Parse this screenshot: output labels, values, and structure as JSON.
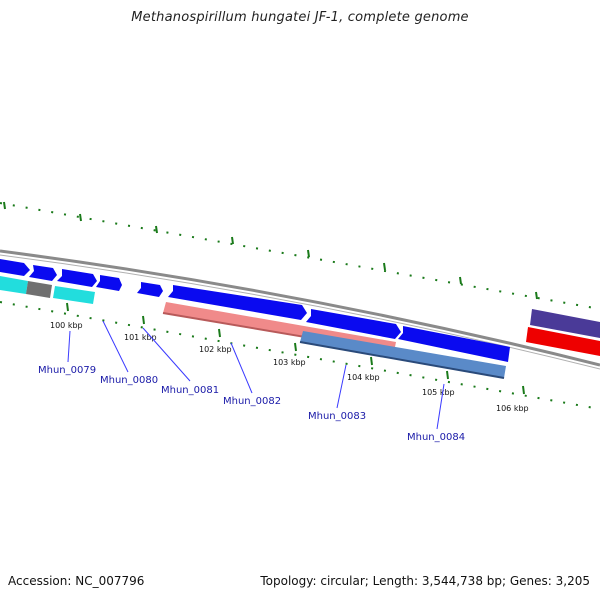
{
  "title": "Methanospirillum hungatei JF-1, complete genome",
  "footer": {
    "accession": "Accession: NC_007796",
    "summary": "Topology: circular; Length: 3,544,738 bp; Genes: 3,205"
  },
  "ticks": [
    {
      "label": "100 kbp"
    },
    {
      "label": "101 kbp"
    },
    {
      "label": "102 kbp"
    },
    {
      "label": "103 kbp"
    },
    {
      "label": "104 kbp"
    },
    {
      "label": "105 kbp"
    },
    {
      "label": "106 kbp"
    }
  ],
  "genes": [
    {
      "label": "Mhun_0079"
    },
    {
      "label": "Mhun_0080"
    },
    {
      "label": "Mhun_0081"
    },
    {
      "label": "Mhun_0082"
    },
    {
      "label": "Mhun_0083"
    },
    {
      "label": "Mhun_0084"
    }
  ],
  "colors": {
    "cds_forward": "#0a0af0",
    "backbone": "#888888",
    "tick_marks": "#1a7a1a",
    "label_text": "#1a1aa8",
    "feature_salmon": "#f08a8a",
    "feature_steelblue": "#5a8ac8",
    "feature_cyan": "#22dddd",
    "feature_gray": "#707070",
    "feature_slate": "#4a3a98",
    "feature_red": "#ee0000"
  }
}
